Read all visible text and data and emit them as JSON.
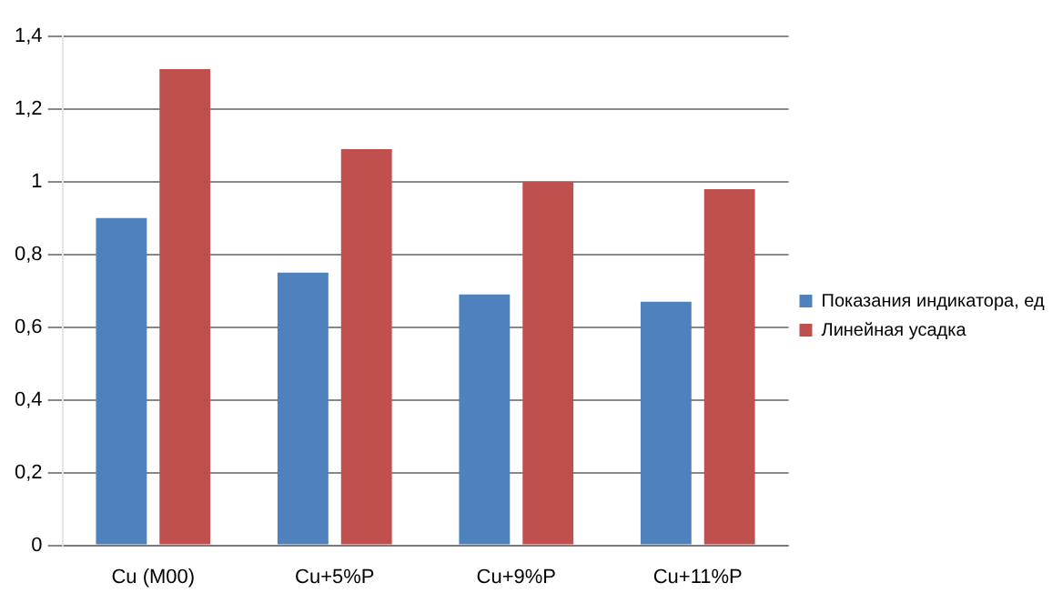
{
  "chart_data": {
    "type": "bar",
    "categories": [
      "Cu (M00)",
      "Cu+5%P",
      "Cu+9%P",
      "Cu+11%P"
    ],
    "series": [
      {
        "name": "Показания индикатора, ед",
        "color": "#4f81bd",
        "values": [
          0.9,
          0.75,
          0.69,
          0.67
        ]
      },
      {
        "name": "Линейная усадка",
        "color": "#c0504d",
        "values": [
          1.31,
          1.09,
          1.0,
          0.98
        ]
      }
    ],
    "ylim": [
      0,
      1.4
    ],
    "yticks": [
      0,
      {
        "value": 0.2,
        "label": "0,2"
      },
      {
        "value": 0.4,
        "label": "0,4"
      },
      {
        "value": 0.6,
        "label": "0,6"
      },
      {
        "value": 0.8,
        "label": "0,8"
      },
      1,
      {
        "value": 1.2,
        "label": "1,2"
      },
      {
        "value": 1.4,
        "label": "1,4"
      }
    ],
    "grid": "y",
    "legend": "right"
  }
}
